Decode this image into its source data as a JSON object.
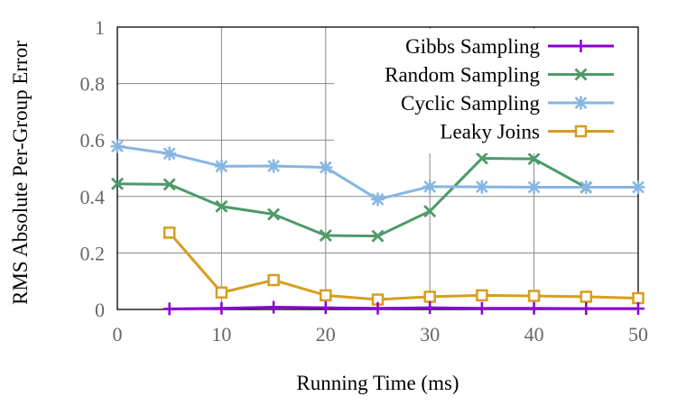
{
  "chart_data": {
    "type": "line",
    "xlabel": "Running Time (ms)",
    "ylabel": "RMS Absolute Per-Group Error",
    "xlim": [
      0,
      50
    ],
    "ylim": [
      0,
      1
    ],
    "x_ticks": [
      0,
      10,
      20,
      30,
      40,
      50
    ],
    "y_ticks": [
      0,
      0.2,
      0.4,
      0.6,
      0.8,
      1
    ],
    "x_tick_labels": [
      "0",
      "10",
      "20",
      "30",
      "40",
      "50"
    ],
    "y_tick_labels": [
      "0",
      "0.2",
      "0.4",
      "0.6",
      "0.8",
      "1"
    ],
    "grid": true,
    "legend_position": "top-right",
    "series": [
      {
        "name": "Gibbs Sampling",
        "color": "#8b00d4",
        "marker": "plus",
        "x": [
          5,
          10,
          15,
          20,
          25,
          30,
          35,
          40,
          45,
          50
        ],
        "y": [
          0.002,
          0.004,
          0.008,
          0.006,
          0.004,
          0.006,
          0.004,
          0.004,
          0.003,
          0.003
        ]
      },
      {
        "name": "Random Sampling",
        "color": "#4e9a6a",
        "marker": "x",
        "x": [
          0,
          5,
          10,
          15,
          20,
          25,
          30,
          35,
          40,
          45
        ],
        "y": [
          0.445,
          0.443,
          0.365,
          0.337,
          0.262,
          0.26,
          0.348,
          0.535,
          0.533,
          0.432
        ]
      },
      {
        "name": "Cyclic Sampling",
        "color": "#86b6e3",
        "marker": "asterisk",
        "x": [
          0,
          5,
          10,
          15,
          20,
          25,
          30,
          35,
          40,
          45,
          50
        ],
        "y": [
          0.578,
          0.552,
          0.507,
          0.508,
          0.503,
          0.39,
          0.435,
          0.434,
          0.433,
          0.433,
          0.433
        ]
      },
      {
        "name": "Leaky Joins",
        "color": "#d79e1e",
        "marker": "square",
        "x": [
          5,
          10,
          15,
          20,
          25,
          30,
          35,
          40,
          45,
          50
        ],
        "y": [
          0.272,
          0.06,
          0.104,
          0.05,
          0.035,
          0.045,
          0.05,
          0.048,
          0.045,
          0.04
        ]
      }
    ]
  }
}
